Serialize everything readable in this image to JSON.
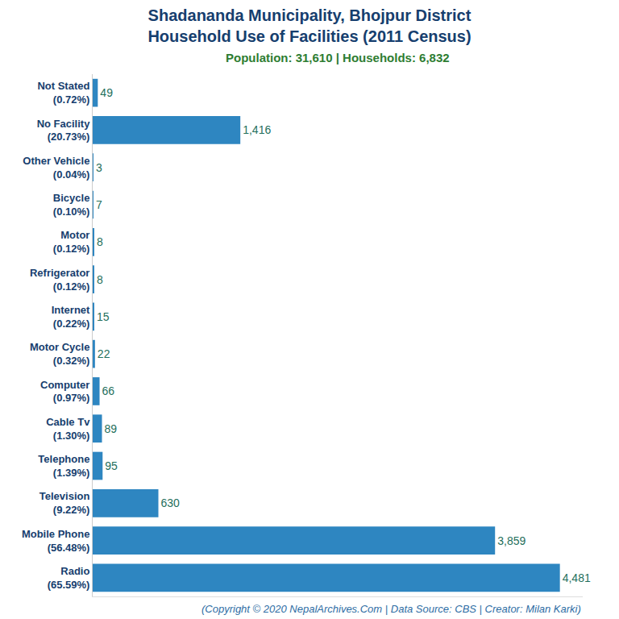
{
  "chart_data": {
    "type": "bar",
    "orientation": "horizontal",
    "title": "Shadananda Municipality, Bhojpur District\nHousehold Use of Facilities (2011 Census)",
    "subtitle": "Population: 31,610 | Households: 6,832",
    "annotations": [
      "(Copyright © 2020 NepalArchives.Com | Data Source: CBS | Creator: Milan Karki)"
    ],
    "categories": [
      "Not Stated\n(0.72%)",
      "No Facility\n(20.73%)",
      "Other Vehicle\n(0.04%)",
      "Bicycle\n(0.10%)",
      "Motor\n(0.12%)",
      "Refrigerator\n(0.12%)",
      "Internet\n(0.22%)",
      "Motor Cycle\n(0.32%)",
      "Computer\n(0.97%)",
      "Cable Tv\n(1.30%)",
      "Telephone\n(1.39%)",
      "Television\n(9.22%)",
      "Mobile Phone\n(56.48%)",
      "Radio\n(65.59%)"
    ],
    "values": [
      49,
      1416,
      3,
      7,
      8,
      8,
      15,
      22,
      66,
      89,
      95,
      630,
      3859,
      4481
    ],
    "value_labels": [
      "49",
      "1,416",
      "3",
      "7",
      "8",
      "8",
      "15",
      "22",
      "66",
      "89",
      "95",
      "630",
      "3,859",
      "4,481"
    ],
    "data_labels": true,
    "color": "#2e86c1",
    "xlim": [
      0,
      4700
    ],
    "tick_labels": "y",
    "grid": false
  }
}
